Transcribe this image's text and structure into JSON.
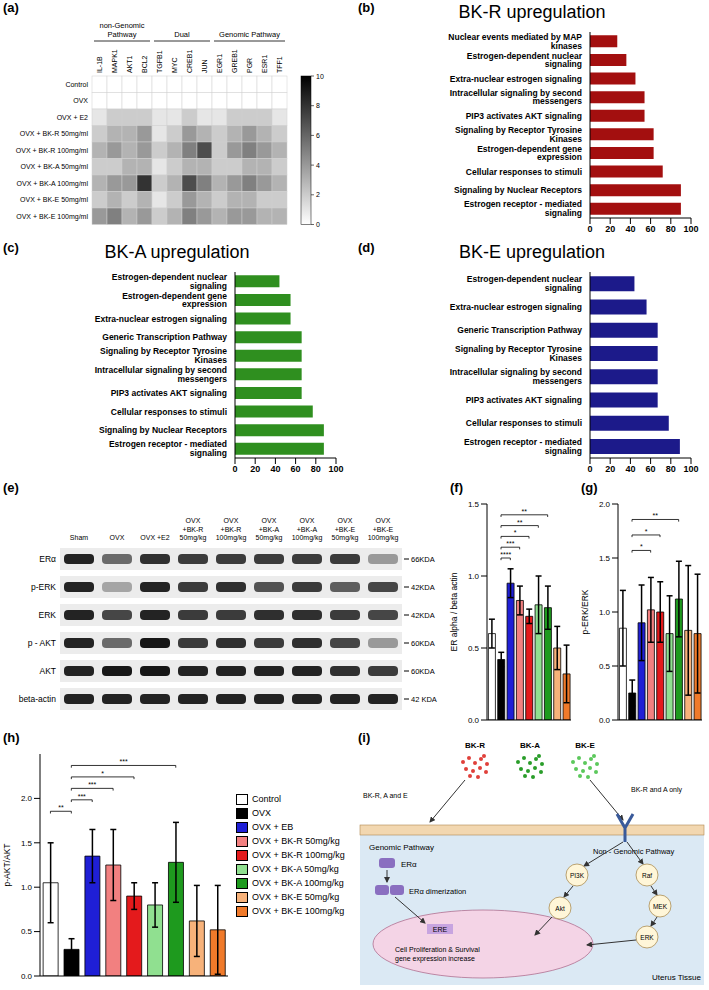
{
  "chart_data": [
    {
      "panel": "(a)",
      "type": "heatmap",
      "groups": [
        {
          "label": "non-Genomic Pathway",
          "columns": [
            "IL-1B",
            "MAPK1",
            "AKT1",
            "BCL2"
          ]
        },
        {
          "label": "Dual",
          "columns": [
            "TGFB1",
            "MYC",
            "CREB1",
            "JUN"
          ]
        },
        {
          "label": "Genomic Pathway",
          "columns": [
            "EGR1",
            "GREB1",
            "PGR",
            "ESR1",
            "TFF1"
          ]
        }
      ],
      "rows": [
        "Control",
        "OVX",
        "OVX + E2",
        "OVX + BK-R 50mg/ml",
        "OVX + BK-R 100mg/ml",
        "OVX + BK-A 50mg/ml",
        "OVX + BK-A 100mg/ml",
        "OVX + BK-E 50mg/ml",
        "OVX + BK-E 100mg/ml"
      ],
      "cells": [
        [
          0,
          0,
          0,
          0,
          0,
          0,
          0,
          0,
          0,
          0,
          0,
          0,
          0
        ],
        [
          0,
          0,
          0,
          0,
          0,
          0,
          0,
          0,
          0,
          0,
          0,
          0,
          0
        ],
        [
          1,
          2,
          2,
          2,
          1,
          1,
          2,
          1,
          1,
          2,
          2,
          2,
          1
        ],
        [
          2,
          3,
          3,
          4,
          1,
          2,
          4,
          3,
          2,
          3,
          4,
          3,
          2
        ],
        [
          3,
          4,
          3,
          4,
          2,
          3,
          5,
          7,
          2,
          4,
          5,
          4,
          3
        ],
        [
          2,
          2,
          3,
          3,
          1,
          2,
          3,
          3,
          2,
          2,
          3,
          3,
          2
        ],
        [
          3,
          4,
          4,
          8,
          2,
          3,
          7,
          5,
          3,
          4,
          5,
          4,
          3
        ],
        [
          2,
          3,
          2,
          3,
          1,
          2,
          4,
          3,
          2,
          3,
          3,
          2,
          2
        ],
        [
          4,
          5,
          3,
          4,
          2,
          3,
          5,
          4,
          3,
          4,
          4,
          3,
          3
        ]
      ],
      "colorbar": {
        "range": [
          0,
          10
        ],
        "ticks": [
          0,
          2,
          4,
          6,
          8,
          10
        ]
      }
    },
    {
      "panel": "(b)",
      "type": "bar",
      "orientation": "horizontal",
      "title": "BK-R upregulation",
      "categories": [
        "Nuclear events mediated by MAP kinases",
        "Estrogen-dependent nuclear signaling",
        "Extra-nuclear estrogen signaling",
        "Intracellular signaling by second messengers",
        "PIP3 activates AKT signaling",
        "Signaling by Receptor Tyrosine Kinases",
        "Estrogen-dependent gene expression",
        "Cellular responses to stimuli",
        "Signaling by Nuclear Receptors",
        "Estrogen receptor - mediated signaling"
      ],
      "values": [
        27,
        36,
        45,
        54,
        54,
        63,
        63,
        72,
        90,
        90
      ],
      "color": "#a30f0f",
      "xlim": [
        0,
        100
      ],
      "xticks": [
        0,
        20,
        40,
        60,
        80,
        100
      ]
    },
    {
      "panel": "(c)",
      "type": "bar",
      "orientation": "horizontal",
      "title": "BK-A upregulation",
      "categories": [
        "Estrogen-dependent nuclear signaling",
        "Estrogen-dependent gene expression",
        "Extra-nuclear estrogen signaling",
        "Generic Transcription Pathway",
        "Signaling by Receptor Tyrosine Kinases",
        "Intracellular signaling by second messengers",
        "PIP3 activates AKT signaling",
        "Cellular responses to stimuli",
        "Signaling by Nuclear Receptors",
        "Estrogen receptor - mediated signaling"
      ],
      "values": [
        44,
        55,
        55,
        66,
        66,
        66,
        66,
        77,
        88,
        88
      ],
      "color": "#2f8f1f",
      "xlim": [
        0,
        100
      ],
      "xticks": [
        0,
        20,
        40,
        60,
        80,
        100
      ]
    },
    {
      "panel": "(d)",
      "type": "bar",
      "orientation": "horizontal",
      "title": "BK-E upregulation",
      "categories": [
        "Estrogen-dependent nuclear signaling",
        "Extra-nuclear estrogen signaling",
        "Generic Transcription Pathway",
        "Signaling by Receptor Tyrosine Kinases",
        "Intracellular signaling by second messengers",
        "PIP3 activates AKT signaling",
        "Cellular responses to stimuli",
        "Estrogen receptor - mediated signaling"
      ],
      "values": [
        44,
        56,
        67,
        67,
        67,
        67,
        78,
        89
      ],
      "color": "#1c1a8a",
      "xlim": [
        0,
        100
      ],
      "xticks": [
        0,
        20,
        40,
        60,
        80,
        100
      ]
    },
    {
      "panel": "(f)",
      "type": "bar",
      "y_label": "ER alpha / beta actin",
      "tick_labels": "y",
      "categories": [
        "Control",
        "OVX",
        "OVX + EB",
        "OVX + BK-R 50mg/kg",
        "OVX + BK-R 100mg/kg",
        "OVX + BK-A 50mg/kg",
        "OVX + BK-A 100mg/kg",
        "OVX + BK-E 50mg/kg",
        "OVX + BK-E 100mg/kg"
      ],
      "values": [
        0.6,
        0.42,
        0.95,
        0.83,
        0.72,
        0.8,
        0.78,
        0.5,
        0.32
      ],
      "error": [
        0.1,
        0.05,
        0.1,
        0.1,
        0.05,
        0.2,
        0.15,
        0.15,
        0.2
      ],
      "colors": [
        "#ffffff",
        "#000000",
        "#1f1fd6",
        "#f28080",
        "#e41a1c",
        "#90e090",
        "#1e9a1e",
        "#f7b27a",
        "#f07a2a"
      ],
      "ylim": [
        0,
        1.5
      ],
      "yticks": [
        {
          "value": 0,
          "label": "0.0"
        },
        0.5,
        {
          "value": 1,
          "label": "1.0"
        },
        1.5
      ],
      "annotations": [
        {
          "from": "OVX",
          "to": "OVX + EB",
          "label": "****"
        },
        {
          "from": "OVX",
          "to": "OVX + BK-R 50mg/kg",
          "label": "***"
        },
        {
          "from": "OVX",
          "to": "OVX + BK-R 100mg/kg",
          "label": "*"
        },
        {
          "from": "OVX",
          "to": "OVX + BK-A 50mg/kg",
          "label": "**"
        },
        {
          "from": "OVX",
          "to": "OVX + BK-A 100mg/kg",
          "label": "**"
        }
      ]
    },
    {
      "panel": "(g)",
      "type": "bar",
      "y_label": "p-ERK/ERK",
      "tick_labels": "y",
      "categories": [
        "Control",
        "OVX",
        "OVX + EB",
        "OVX + BK-R 50mg/kg",
        "OVX + BK-R 100mg/kg",
        "OVX + BK-A 50mg/kg",
        "OVX + BK-A 100mg/kg",
        "OVX + BK-E 50mg/kg",
        "OVX + BK-E 100mg/kg"
      ],
      "values": [
        0.85,
        0.25,
        0.9,
        1.02,
        1.0,
        0.8,
        1.12,
        0.83,
        0.8
      ],
      "error": [
        0.35,
        0.12,
        0.35,
        0.3,
        0.28,
        0.35,
        0.35,
        0.6,
        0.55
      ],
      "colors": [
        "#ffffff",
        "#000000",
        "#1f1fd6",
        "#f28080",
        "#e41a1c",
        "#90e090",
        "#1e9a1e",
        "#f7b27a",
        "#f07a2a"
      ],
      "ylim": [
        0,
        2
      ],
      "yticks": [
        {
          "value": 0,
          "label": "0.0"
        },
        0.5,
        {
          "value": 1,
          "label": "1.0"
        },
        1.5,
        {
          "value": 2,
          "label": "2.0"
        }
      ],
      "annotations": [
        {
          "from": "OVX",
          "to": "OVX + BK-R 50mg/kg",
          "label": "*"
        },
        {
          "from": "OVX",
          "to": "OVX + BK-R 100mg/kg",
          "label": "*"
        },
        {
          "from": "OVX",
          "to": "OVX + BK-A 100mg/kg",
          "label": "**"
        }
      ]
    },
    {
      "panel": "(h)",
      "type": "bar",
      "y_label": "p-AKT/AKT",
      "tick_labels": "y",
      "legend": "right",
      "categories": [
        "Control",
        "OVX",
        "OVX + EB",
        "OVX + BK-R 50mg/kg",
        "OVX + BK-R 100mg/kg",
        "OVX + BK-A 50mg/kg",
        "OVX + BK-A 100mg/kg",
        "OVX + BK-E 50mg/kg",
        "OVX + BK-E 100mg/kg"
      ],
      "values": [
        1.05,
        0.3,
        1.35,
        1.25,
        0.9,
        0.8,
        1.28,
        0.62,
        0.52
      ],
      "error": [
        0.45,
        0.12,
        0.3,
        0.4,
        0.15,
        0.25,
        0.45,
        0.4,
        0.5
      ],
      "colors": [
        "#ffffff",
        "#000000",
        "#1f1fd6",
        "#f28080",
        "#e41a1c",
        "#90e090",
        "#1e9a1e",
        "#f7b27a",
        "#f07a2a"
      ],
      "ylim": [
        0,
        2.5
      ],
      "yticks": [
        {
          "value": 0,
          "label": "0.0"
        },
        0.5,
        {
          "value": 1,
          "label": "1.0"
        },
        1.5,
        {
          "value": 2,
          "label": "2.0"
        }
      ],
      "annotations": [
        {
          "from": "Control",
          "to": "OVX",
          "label": "**"
        },
        {
          "from": "OVX",
          "to": "OVX + EB",
          "label": "***"
        },
        {
          "from": "OVX",
          "to": "OVX + BK-R 50mg/kg",
          "label": "***"
        },
        {
          "from": "OVX",
          "to": "OVX + BK-R 100mg/kg",
          "label": "*"
        },
        {
          "from": "OVX",
          "to": "OVX + BK-A 100mg/kg",
          "label": "***"
        }
      ]
    }
  ],
  "blot": {
    "panel": "(e)",
    "lanes": [
      "Sham",
      "OVX",
      "OVX +E2",
      "OVX +BK-R 50mg/kg",
      "OVX +BK-R 100mg/kg",
      "OVX +BK-A 50mg/kg",
      "OVX +BK-A 100mg/kg",
      "OVX +BK-E 50mg/kg",
      "OVX +BK-E 100mg/kg"
    ],
    "rows": [
      {
        "label": "ERα",
        "size": "66KDA",
        "band_intensity": [
          0.85,
          0.55,
          0.8,
          0.75,
          0.75,
          0.75,
          0.75,
          0.75,
          0.35
        ]
      },
      {
        "label": "p-ERK",
        "size": "42KDA",
        "band_intensity": [
          0.85,
          0.3,
          0.85,
          0.75,
          0.8,
          0.65,
          0.75,
          0.6,
          0.7
        ]
      },
      {
        "label": "ERK",
        "size": "42KDA",
        "band_intensity": [
          0.85,
          0.7,
          0.85,
          0.75,
          0.75,
          0.8,
          0.8,
          0.75,
          0.7
        ]
      },
      {
        "label": "p - AKT",
        "size": "60KDA",
        "band_intensity": [
          0.85,
          0.55,
          0.9,
          0.75,
          0.8,
          0.75,
          0.8,
          0.7,
          0.35
        ]
      },
      {
        "label": "AKT",
        "size": "60KDA",
        "band_intensity": [
          0.85,
          0.9,
          0.9,
          0.85,
          0.85,
          0.85,
          0.85,
          0.8,
          0.75
        ]
      },
      {
        "label": "beta-actin",
        "size": "42 KDA",
        "band_intensity": [
          0.85,
          0.85,
          0.85,
          0.85,
          0.85,
          0.85,
          0.85,
          0.85,
          0.85
        ]
      }
    ]
  },
  "diagram": {
    "panel": "(i)",
    "extracts": [
      {
        "label": "BK-R",
        "color": "#e0403a"
      },
      {
        "label": "BK-A",
        "color": "#2a9d2a"
      },
      {
        "label": "BK-E",
        "color": "#5cc85c"
      }
    ],
    "genomic_entry": "BK-R, A and E",
    "nongenomic_entry": "BK-R and A only",
    "genomic_title": "Genomic Pathway",
    "nongenomic_title": "Non - Genomic Pathway",
    "receptor": "ERα",
    "dimerization": "ERα dimerization",
    "element": "ERE",
    "kinases": [
      "PI3K",
      "Akt",
      "Raf",
      "MEK",
      "ERK"
    ],
    "outcome": "Cell Proliferation & Survival gene expression increase",
    "tissue": "Uterus Tissue"
  }
}
